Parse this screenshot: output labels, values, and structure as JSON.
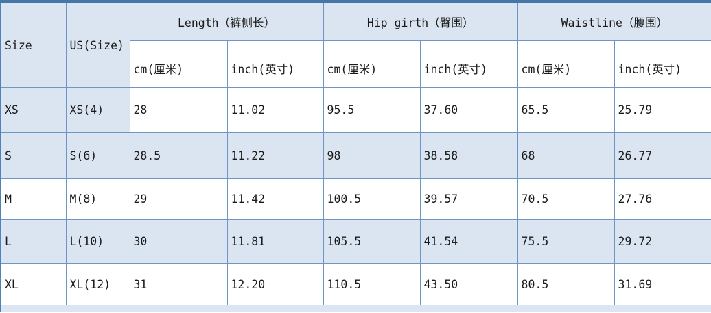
{
  "table": {
    "header": {
      "size_label": "Size",
      "us_size_label": "US(Size)",
      "groups": [
        {
          "label": "Length（裤侧长）"
        },
        {
          "label": "Hip girth（臀围）"
        },
        {
          "label": "Waistline（腰围）"
        }
      ],
      "sub_cm": "cm(厘米)",
      "sub_inch": "inch(英寸)"
    },
    "rows": [
      {
        "size": "XS",
        "us": "XS(4)",
        "values": [
          "28",
          "11.02",
          "95.5",
          "37.60",
          "65.5",
          "25.79"
        ]
      },
      {
        "size": "S",
        "us": "S(6)",
        "values": [
          "28.5",
          "11.22",
          "98",
          "38.58",
          "68",
          "26.77"
        ]
      },
      {
        "size": "M",
        "us": "M(8)",
        "values": [
          "29",
          "11.42",
          "100.5",
          "39.57",
          "70.5",
          "27.76"
        ]
      },
      {
        "size": "L",
        "us": "L(10)",
        "values": [
          "30",
          "11.81",
          "105.5",
          "41.54",
          "75.5",
          "29.72"
        ]
      },
      {
        "size": "XL",
        "us": "XL(12)",
        "values": [
          "31",
          "12.20",
          "110.5",
          "43.50",
          "80.5",
          "31.69"
        ]
      }
    ]
  },
  "colors": {
    "header_fill": "#dbe5f1",
    "stripe_fill": "#dbe5f1",
    "white_fill": "#ffffff",
    "inner_border": "#6e96c3",
    "top_border": "#4576a8",
    "outer_border": "#4f81bd"
  }
}
